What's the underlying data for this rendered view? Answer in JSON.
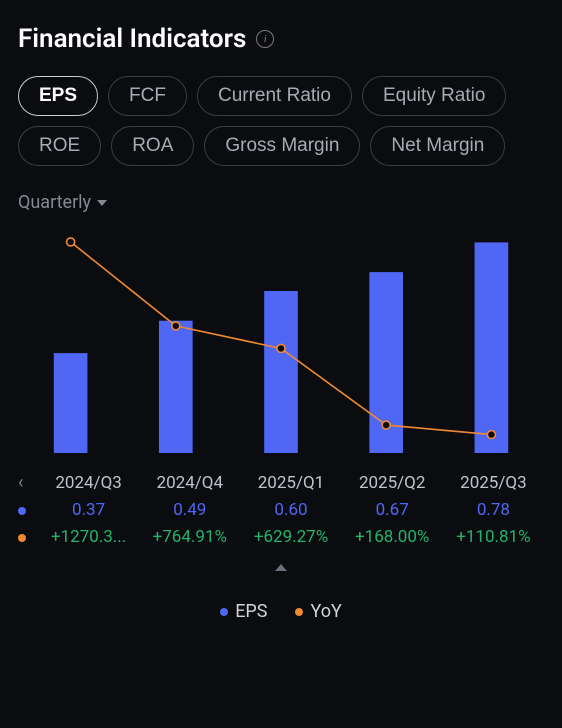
{
  "title": "Financial Indicators",
  "tabs": [
    {
      "label": "EPS",
      "active": true
    },
    {
      "label": "FCF",
      "active": false
    },
    {
      "label": "Current Ratio",
      "active": false
    },
    {
      "label": "Equity Ratio",
      "active": false
    },
    {
      "label": "ROE",
      "active": false
    },
    {
      "label": "ROA",
      "active": false
    },
    {
      "label": "Gross Margin",
      "active": false
    },
    {
      "label": "Net Margin",
      "active": false
    }
  ],
  "period": {
    "label": "Quarterly"
  },
  "chart": {
    "type": "bar+line",
    "background_color": "#0a0c10",
    "bar_color": "#5066f5",
    "line_color": "#ef8933",
    "marker_size": 4,
    "line_width": 1.6,
    "bar_width_pct": 0.32,
    "categories": [
      "2024/Q3",
      "2024/Q4",
      "2025/Q1",
      "2025/Q2",
      "2025/Q3"
    ],
    "bar_values": [
      0.37,
      0.49,
      0.6,
      0.67,
      0.78
    ],
    "bar_ylim": [
      0,
      0.8
    ],
    "line_values": [
      1270.3,
      764.91,
      629.27,
      168.0,
      110.81
    ],
    "line_ylim": [
      0,
      1300
    ]
  },
  "table": {
    "labels": [
      "2024/Q3",
      "2024/Q4",
      "2025/Q1",
      "2025/Q2",
      "2025/Q3"
    ],
    "eps_color": "#5066f5",
    "yoy_color": "#ef8933",
    "yoy_text_color": "#24b36b",
    "eps": [
      "0.37",
      "0.49",
      "0.60",
      "0.67",
      "0.78"
    ],
    "yoy": [
      "+1270.3...",
      "+764.91%",
      "+629.27%",
      "+168.00%",
      "+110.81%"
    ]
  },
  "legend": [
    {
      "label": "EPS",
      "color": "#5066f5"
    },
    {
      "label": "YoY",
      "color": "#ef8933"
    }
  ],
  "scroll_prev": "‹"
}
